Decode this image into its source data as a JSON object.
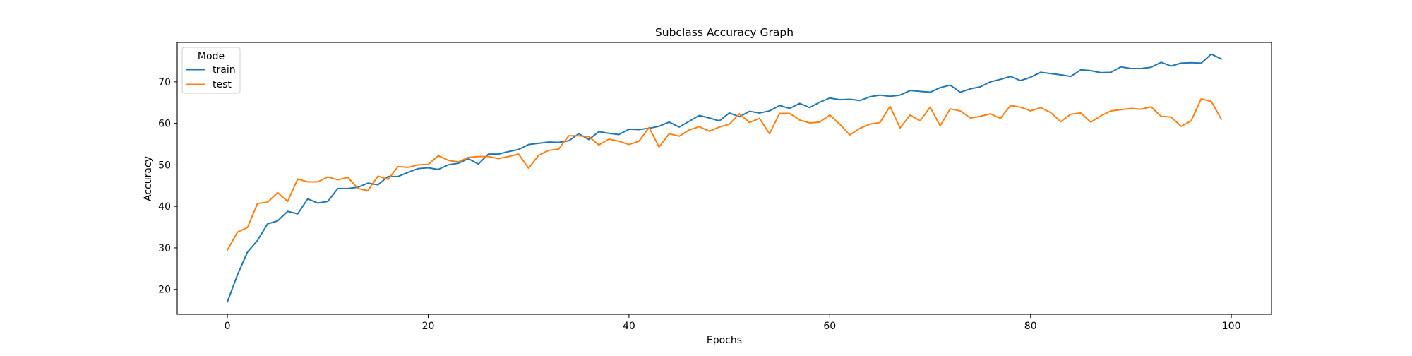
{
  "chart_data": {
    "type": "line",
    "title": "Subclass Accuracy Graph",
    "xlabel": "Epochs",
    "ylabel": "Accuracy",
    "xlim": [
      -5,
      104
    ],
    "ylim": [
      14,
      79.5
    ],
    "xticks": [
      0,
      20,
      40,
      60,
      80,
      100
    ],
    "yticks": [
      20,
      30,
      40,
      50,
      60,
      70
    ],
    "grid": false,
    "legend": {
      "title": "Mode",
      "placement": "top-left"
    },
    "x": [
      0,
      1,
      2,
      3,
      4,
      5,
      6,
      7,
      8,
      9,
      10,
      11,
      12,
      13,
      14,
      15,
      16,
      17,
      18,
      19,
      20,
      21,
      22,
      23,
      24,
      25,
      26,
      27,
      28,
      29,
      30,
      31,
      32,
      33,
      34,
      35,
      36,
      37,
      38,
      39,
      40,
      41,
      42,
      43,
      44,
      45,
      46,
      47,
      48,
      49,
      50,
      51,
      52,
      53,
      54,
      55,
      56,
      57,
      58,
      59,
      60,
      61,
      62,
      63,
      64,
      65,
      66,
      67,
      68,
      69,
      70,
      71,
      72,
      73,
      74,
      75,
      76,
      77,
      78,
      79,
      80,
      81,
      82,
      83,
      84,
      85,
      86,
      87,
      88,
      89,
      90,
      91,
      92,
      93,
      94,
      95,
      96,
      97,
      98,
      99
    ],
    "series": [
      {
        "name": "train",
        "color": "#1f77b4",
        "values": [
          17.0,
          23.5,
          29.0,
          31.8,
          35.8,
          36.5,
          38.8,
          38.2,
          41.8,
          40.8,
          41.2,
          44.3,
          44.3,
          44.6,
          45.6,
          45.2,
          47.2,
          47.2,
          48.2,
          49.1,
          49.3,
          48.9,
          50.0,
          50.4,
          51.5,
          50.2,
          52.6,
          52.6,
          53.2,
          53.7,
          54.9,
          55.2,
          55.5,
          55.4,
          55.8,
          57.5,
          56.1,
          58.0,
          57.6,
          57.3,
          58.6,
          58.5,
          58.8,
          59.3,
          60.3,
          59.1,
          60.5,
          61.9,
          61.3,
          60.6,
          62.5,
          61.6,
          62.9,
          62.5,
          63.0,
          64.3,
          63.6,
          64.8,
          63.8,
          65.1,
          66.1,
          65.7,
          65.8,
          65.5,
          66.4,
          66.8,
          66.5,
          66.8,
          67.9,
          67.7,
          67.5,
          68.6,
          69.2,
          67.5,
          68.3,
          68.8,
          70.0,
          70.6,
          71.3,
          70.3,
          71.1,
          72.3,
          72.0,
          71.7,
          71.3,
          72.9,
          72.7,
          72.2,
          72.3,
          73.6,
          73.2,
          73.2,
          73.5,
          74.7,
          73.8,
          74.5,
          74.6,
          74.5,
          76.7,
          75.5
        ]
      },
      {
        "name": "test",
        "color": "#ff7f0e",
        "values": [
          29.5,
          33.8,
          34.9,
          40.7,
          41.0,
          43.3,
          41.2,
          46.6,
          45.9,
          45.9,
          47.1,
          46.4,
          47.0,
          44.3,
          43.8,
          47.3,
          46.5,
          49.6,
          49.4,
          50.0,
          50.1,
          52.2,
          51.1,
          50.7,
          51.8,
          52.0,
          52.0,
          51.5,
          52.0,
          52.6,
          49.2,
          52.3,
          53.5,
          53.8,
          57.0,
          57.0,
          56.8,
          54.8,
          56.2,
          55.7,
          54.9,
          55.7,
          59.0,
          54.3,
          57.5,
          56.9,
          58.4,
          59.2,
          58.1,
          59.1,
          59.8,
          62.3,
          60.2,
          61.2,
          57.5,
          62.4,
          62.4,
          60.8,
          60.1,
          60.3,
          62.0,
          59.8,
          57.2,
          58.8,
          59.8,
          60.2,
          64.1,
          58.9,
          62.0,
          60.6,
          63.9,
          59.4,
          63.5,
          63.0,
          61.3,
          61.7,
          62.3,
          61.2,
          64.3,
          63.9,
          63.0,
          63.8,
          62.6,
          60.4,
          62.2,
          62.5,
          60.3,
          61.8,
          63.0,
          63.3,
          63.6,
          63.4,
          64.0,
          61.7,
          61.5,
          59.3,
          60.6,
          65.9,
          65.3,
          61.0
        ]
      }
    ]
  }
}
